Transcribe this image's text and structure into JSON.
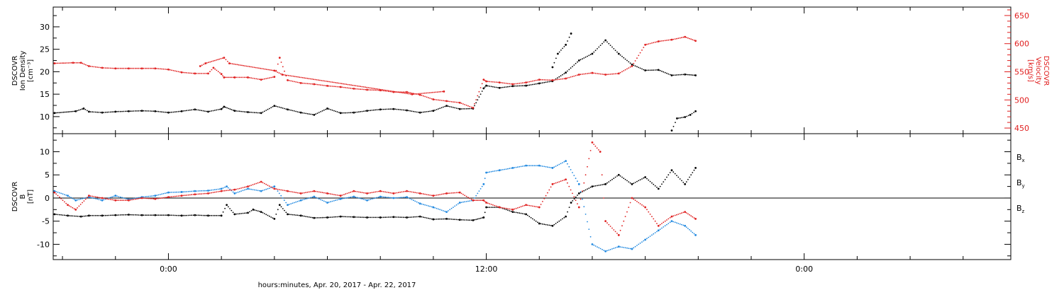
{
  "colors": {
    "black": "#000000",
    "red": "#e01e1e",
    "blue": "#1f88e0",
    "axis": "#000000",
    "right_axis": "#e01e1e"
  },
  "xlabel": "hours:minutes, Apr. 20, 2017 - Apr. 22, 2017",
  "x_ticks": [
    {
      "hour": 0,
      "label": "0:00"
    },
    {
      "hour": 12,
      "label": "12:00"
    },
    {
      "hour": 24,
      "label": "0:00"
    }
  ],
  "xlim": [
    -4.35,
    31.8
  ],
  "chart_data": [
    {
      "type": "scatter",
      "panel": "top",
      "ylabel_left": [
        "DSCOVR",
        "Ion Density",
        "[cm⁻³]"
      ],
      "ylabel_right": [
        "DSCOVR",
        "Velocity",
        "[km/s]"
      ],
      "ylim_left": [
        6.2,
        34.4
      ],
      "yticks_left": [
        10,
        15,
        20,
        25,
        30
      ],
      "ylim_right": [
        440,
        665
      ],
      "yticks_right": [
        450,
        500,
        550,
        600,
        650
      ],
      "series": [
        {
          "color": "black",
          "axis": "left",
          "x": [
            -4.3,
            -3.5,
            -3.2,
            -3.0,
            -2.5,
            -2.0,
            -1.5,
            -1.0,
            -0.5,
            0.0,
            0.5,
            1.0,
            1.5,
            2.0,
            2.1,
            2.5,
            3.0,
            3.5,
            4.0,
            4.5,
            5.0,
            5.5,
            6.0,
            6.5,
            7.0,
            7.5,
            8.0,
            8.5,
            9.0,
            9.5,
            10.0,
            10.5,
            11.0,
            11.5,
            11.9,
            12.0,
            12.5,
            13.0,
            13.5,
            14.0,
            14.5,
            15.0,
            15.5,
            16.0,
            16.5,
            17.0,
            17.5,
            18.0,
            18.5,
            19.0,
            19.5,
            19.9
          ],
          "y": [
            10.8,
            11.2,
            11.8,
            11.1,
            10.9,
            11.1,
            11.2,
            11.3,
            11.2,
            10.9,
            11.2,
            11.6,
            11.1,
            11.7,
            12.2,
            11.3,
            11.0,
            10.8,
            12.4,
            11.6,
            10.9,
            10.4,
            11.8,
            10.8,
            10.9,
            11.3,
            11.6,
            11.7,
            11.4,
            10.9,
            11.3,
            12.4,
            11.7,
            11.8,
            16.3,
            16.9,
            16.4,
            16.8,
            16.9,
            17.4,
            17.9,
            19.8,
            22.5,
            24.0,
            27.0,
            24.0,
            21.6,
            20.3,
            20.4,
            19.2,
            19.4,
            19.2
          ]
        },
        {
          "color": "black",
          "axis": "left",
          "x": [
            19.0,
            19.2,
            19.5,
            19.7,
            19.9
          ],
          "y": [
            6.9,
            9.6,
            9.9,
            10.4,
            11.2
          ]
        },
        {
          "color": "black",
          "axis": "left",
          "x": [
            14.5,
            14.7,
            15.0,
            15.2
          ],
          "y": [
            21.0,
            24.0,
            26.0,
            28.5
          ]
        },
        {
          "color": "red",
          "axis": "right",
          "x": [
            -4.3,
            -3.6,
            -3.3,
            -3.0,
            -2.5,
            -2.0,
            -1.5,
            -1.0,
            -0.5,
            0.0,
            0.5,
            1.0,
            1.5,
            1.7,
            2.0,
            2.1,
            2.5,
            3.0,
            3.5,
            4.0,
            4.2,
            4.5,
            5.0,
            5.5,
            6.0,
            6.5,
            7.0,
            7.5,
            8.0,
            8.5,
            9.0,
            9.5,
            10.0,
            10.5,
            11.0,
            11.5,
            11.9,
            12.0,
            12.5,
            13.0,
            13.5,
            14.0,
            14.5,
            15.0,
            15.5,
            16.0,
            16.5,
            17.0,
            17.5,
            18.0,
            18.5,
            19.0,
            19.5,
            19.9
          ],
          "y": [
            565,
            566,
            566,
            560,
            557,
            556,
            556,
            556,
            556,
            554,
            549,
            547,
            547,
            557,
            546,
            540,
            540,
            540,
            536,
            541,
            575,
            535,
            530,
            528,
            525,
            523,
            520,
            518,
            517,
            514,
            514,
            509,
            501,
            498,
            495,
            486,
            536,
            533,
            531,
            528,
            531,
            536,
            535,
            538,
            545,
            548,
            545,
            547,
            560,
            598,
            604,
            607,
            612,
            605
          ]
        },
        {
          "color": "red",
          "axis": "right",
          "x": [
            1.2,
            1.4,
            2.1,
            2.3,
            4.0,
            4.3,
            9.2,
            10.4
          ],
          "y": [
            560,
            565,
            575,
            565,
            552,
            545,
            510,
            515
          ]
        }
      ]
    },
    {
      "type": "scatter",
      "panel": "bottom",
      "ylabel_left": [
        "DSCOVR",
        "B",
        "[nT]"
      ],
      "ylim": [
        -13.3,
        13.9
      ],
      "yticks": [
        -10,
        -5,
        0,
        5,
        10
      ],
      "zero_line": true,
      "legend": [
        {
          "label": "B",
          "sub": "x",
          "color": "black"
        },
        {
          "label": "B",
          "sub": "y",
          "color": "blue"
        },
        {
          "label": "B",
          "sub": "z",
          "color": "red"
        }
      ],
      "series": [
        {
          "name": "Bx",
          "color": "black",
          "x": [
            -4.3,
            -3.8,
            -3.3,
            -3.0,
            -2.5,
            -2.0,
            -1.5,
            -1.0,
            -0.5,
            0.0,
            0.5,
            1.0,
            1.5,
            2.0,
            2.2,
            2.5,
            3.0,
            3.2,
            3.5,
            4.0,
            4.2,
            4.5,
            5.0,
            5.5,
            6.0,
            6.5,
            7.0,
            7.5,
            8.0,
            8.5,
            9.0,
            9.5,
            10.0,
            10.5,
            11.0,
            11.5,
            11.9,
            12.0,
            12.5,
            13.0,
            13.5,
            14.0,
            14.5,
            15.0,
            15.2,
            15.5,
            16.0,
            16.5,
            17.0,
            17.5,
            18.0,
            18.5,
            19.0,
            19.5,
            19.9
          ],
          "y": [
            -3.5,
            -3.8,
            -4.0,
            -3.8,
            -3.8,
            -3.7,
            -3.6,
            -3.7,
            -3.7,
            -3.7,
            -3.8,
            -3.7,
            -3.8,
            -3.8,
            -1.5,
            -3.5,
            -3.2,
            -2.5,
            -3.0,
            -4.5,
            -1.5,
            -3.5,
            -3.8,
            -4.3,
            -4.2,
            -4.0,
            -4.1,
            -4.2,
            -4.2,
            -4.1,
            -4.2,
            -4.0,
            -4.6,
            -4.5,
            -4.7,
            -4.8,
            -4.2,
            -2.0,
            -2.0,
            -3.0,
            -3.5,
            -5.5,
            -6.0,
            -4.0,
            -1.0,
            1.0,
            2.5,
            3.0,
            5.0,
            3.0,
            4.5,
            2.0,
            6.0,
            3.0,
            6.5
          ]
        },
        {
          "name": "By",
          "color": "blue",
          "x": [
            -4.3,
            -3.8,
            -3.5,
            -3.0,
            -2.5,
            -2.0,
            -1.5,
            -1.0,
            -0.5,
            0.0,
            0.5,
            1.0,
            1.5,
            2.0,
            2.2,
            2.5,
            3.0,
            3.5,
            4.0,
            4.5,
            5.0,
            5.5,
            6.0,
            6.5,
            7.0,
            7.5,
            8.0,
            8.5,
            9.0,
            9.5,
            10.0,
            10.5,
            11.0,
            11.5,
            11.9,
            12.0,
            12.5,
            13.0,
            13.5,
            14.0,
            14.5,
            15.0,
            15.5,
            16.0,
            16.5,
            17.0,
            17.5,
            18.0,
            18.5,
            19.0,
            19.5,
            19.9
          ],
          "y": [
            1.5,
            0.5,
            -0.5,
            0.2,
            -0.5,
            0.5,
            -0.3,
            0.2,
            0.5,
            1.2,
            1.3,
            1.5,
            1.6,
            2.0,
            2.5,
            1.0,
            2.0,
            1.5,
            2.5,
            -1.5,
            -0.5,
            0.3,
            -1.0,
            -0.2,
            0.3,
            -0.5,
            0.3,
            0.0,
            0.2,
            -1.2,
            -2.0,
            -3.0,
            -1.0,
            -0.5,
            3.0,
            5.5,
            6.0,
            6.5,
            7.0,
            7.0,
            6.5,
            8.0,
            3.0,
            -10.0,
            -11.5,
            -10.5,
            -11.0,
            -9.0,
            -7.0,
            -5.0,
            -6.0,
            -8.0
          ]
        },
        {
          "name": "Bz",
          "color": "red",
          "x": [
            -4.3,
            -3.8,
            -3.5,
            -3.0,
            -2.5,
            -2.0,
            -1.5,
            -1.0,
            -0.5,
            0.0,
            0.5,
            1.0,
            1.5,
            2.0,
            2.5,
            3.0,
            3.5,
            4.0,
            4.5,
            5.0,
            5.5,
            6.0,
            6.5,
            7.0,
            7.5,
            8.0,
            8.5,
            9.0,
            9.5,
            10.0,
            10.5,
            11.0,
            11.5,
            11.9,
            12.0,
            12.5,
            13.0,
            13.5,
            14.0,
            14.5,
            15.0,
            15.5,
            16.0,
            16.3,
            16.5,
            17.0,
            17.5,
            18.0,
            18.5,
            19.0,
            19.5,
            19.9
          ],
          "y": [
            1.2,
            -1.5,
            -2.5,
            0.5,
            0.0,
            -0.5,
            -0.5,
            0.0,
            -0.2,
            0.2,
            0.5,
            0.8,
            1.0,
            1.5,
            1.8,
            2.5,
            3.5,
            2.0,
            1.5,
            1.0,
            1.5,
            1.0,
            0.5,
            1.5,
            1.0,
            1.5,
            1.0,
            1.5,
            1.0,
            0.5,
            1.0,
            1.2,
            -0.5,
            -0.5,
            -1.0,
            -2.0,
            -2.5,
            -1.5,
            -2.0,
            3.0,
            4.0,
            -2.0,
            12.0,
            10.0,
            -5.0,
            -8.0,
            0.0,
            -2.0,
            -6.0,
            -4.0,
            -3.0,
            -4.5
          ]
        }
      ]
    }
  ]
}
